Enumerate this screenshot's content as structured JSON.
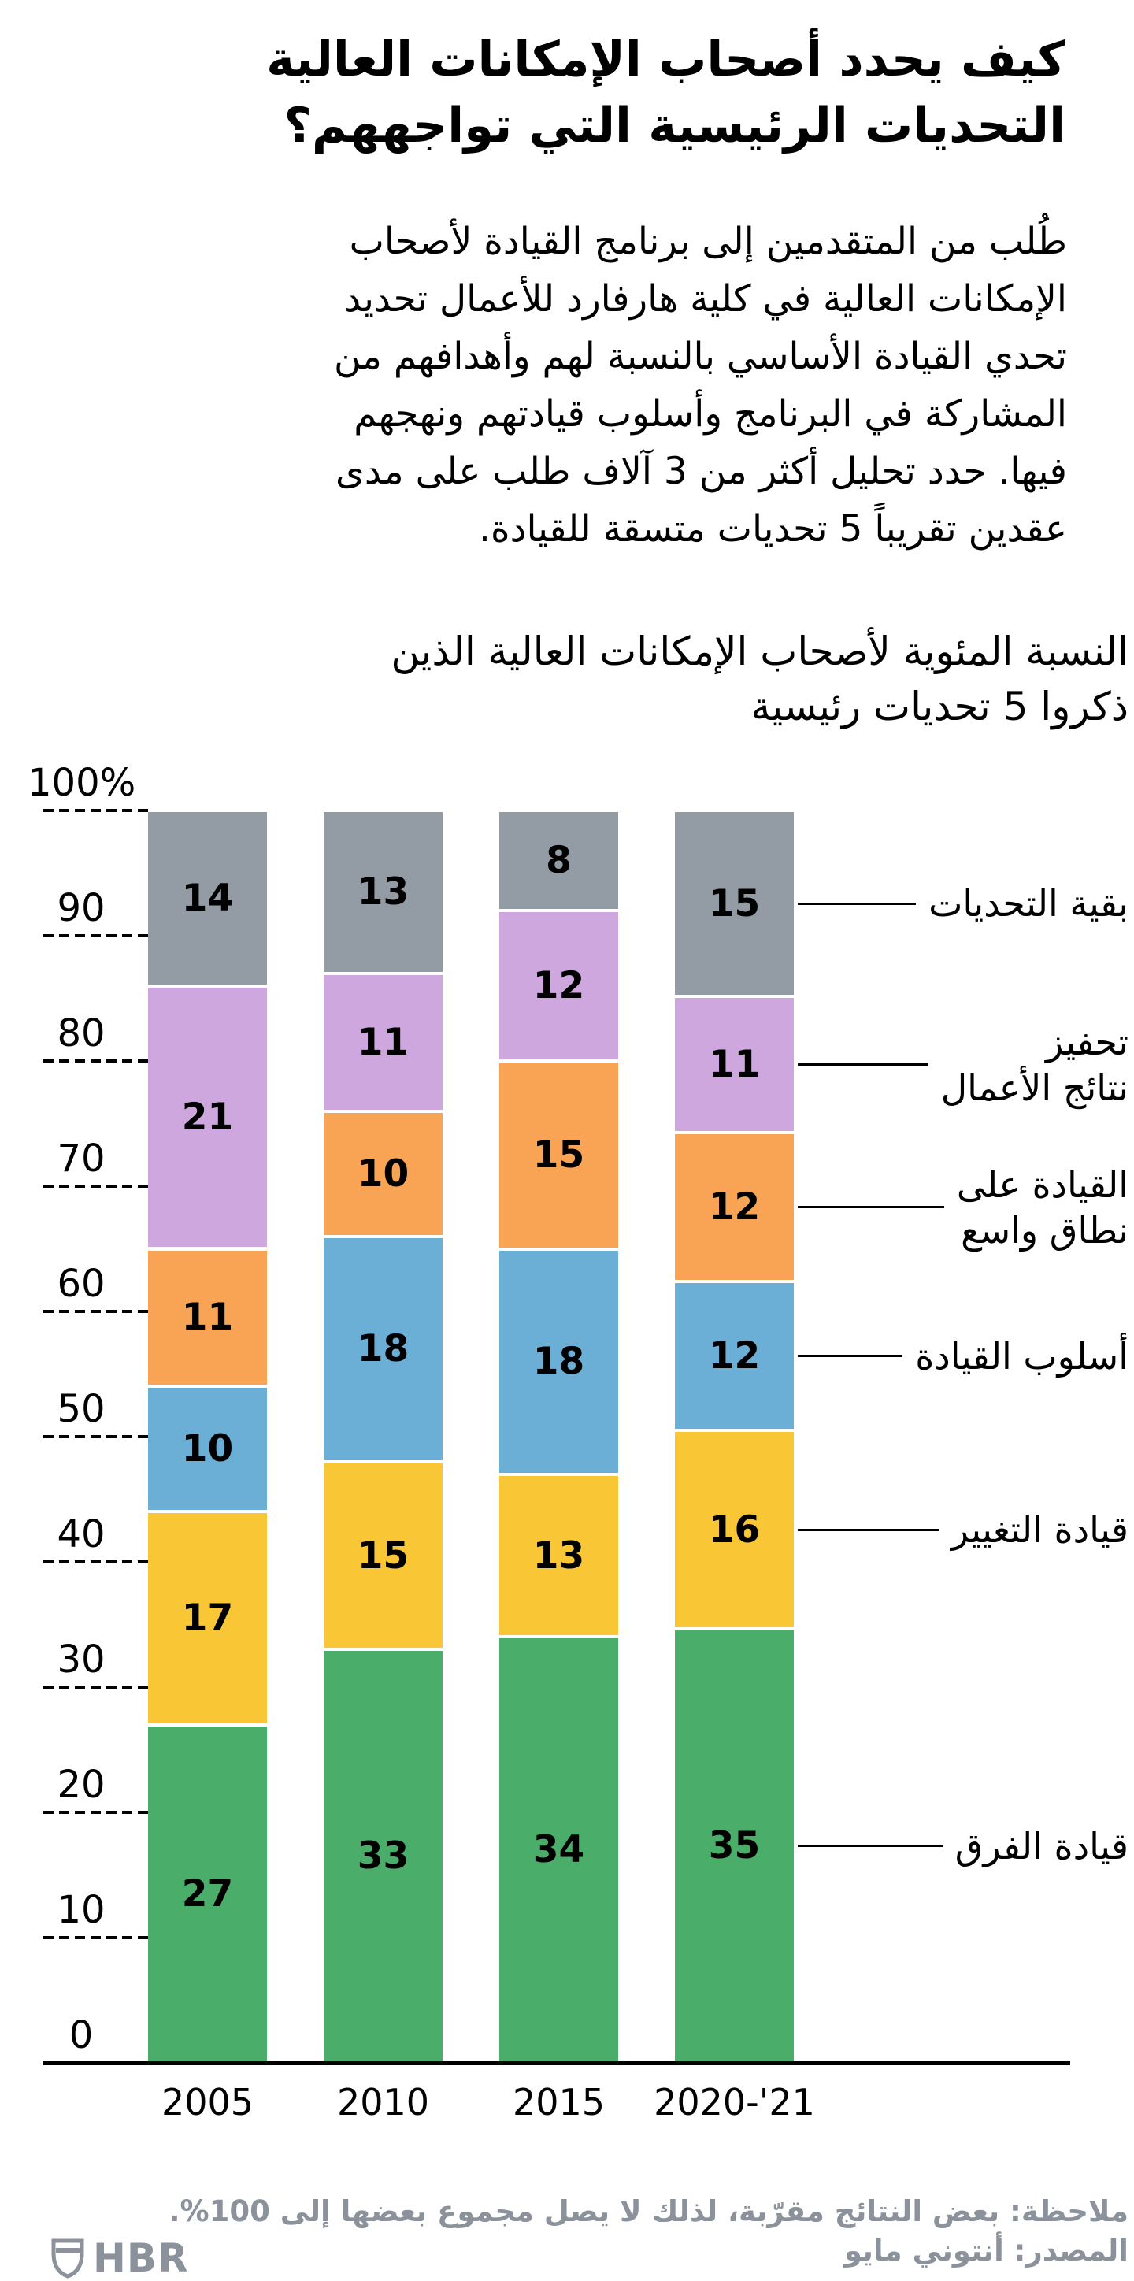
{
  "title": "كيف يحدد أصحاب الإمكانات العالية\nالتحديات الرئيسية التي تواجههم؟",
  "intro": "طُلب من المتقدمين إلى برنامج القيادة لأصحاب\nالإمكانات العالية في كلية هارفارد للأعمال تحديد\nتحدي القيادة الأساسي بالنسبة لهم وأهدافهم من\nالمشاركة في البرنامج وأسلوب قيادتهم ونهجهم\nفيها. حدد تحليل أكثر من 3 آلاف طلب على مدى\nعقدين تقريباً 5 تحديات متسقة للقيادة.",
  "chart_data": {
    "type": "bar",
    "stacked": true,
    "title": "النسبة المئوية لأصحاب الإمكانات العالية الذين\nذكروا 5 تحديات رئيسية",
    "categories": [
      "2005",
      "2010",
      "2015",
      "2020-'21"
    ],
    "series": [
      {
        "name": "بقية التحديات",
        "label": "بقية التحديات",
        "color": "#939CA4",
        "values": [
          14,
          13,
          8,
          15
        ]
      },
      {
        "name": "تحفيز نتائج الأعمال",
        "label": "تحفيز\nنتائج الأعمال",
        "color": "#CDA7DD",
        "values": [
          21,
          11,
          12,
          11
        ]
      },
      {
        "name": "القيادة على نطاق واسع",
        "label": "القيادة على\nنطاق واسع",
        "color": "#F9A455",
        "values": [
          11,
          10,
          15,
          12
        ]
      },
      {
        "name": "أسلوب القيادة",
        "label": "أسلوب القيادة",
        "color": "#6BAED6",
        "values": [
          10,
          18,
          18,
          12
        ]
      },
      {
        "name": "قيادة التغيير",
        "label": "قيادة التغيير",
        "color": "#F9C636",
        "values": [
          17,
          15,
          13,
          16
        ]
      },
      {
        "name": "قيادة الفرق",
        "label": "قيادة الفرق",
        "color": "#4AAD6A",
        "values": [
          27,
          33,
          34,
          35
        ]
      }
    ],
    "yticks": [
      "100%",
      "90",
      "80",
      "70",
      "60",
      "50",
      "40",
      "30",
      "20",
      "10",
      "0"
    ],
    "ylim": [
      0,
      100
    ],
    "grid": "dashed-left-margin-only",
    "legend_position": "right-leader-lines"
  },
  "footer": {
    "note": "ملاحظة: بعض النتائج مقرّبة، لذلك لا يصل مجموع بعضها إلى 100%.",
    "source": "المصدر: أنتوني مايو",
    "logo_text": "HBR"
  },
  "colors": {
    "text": "#000000",
    "muted": "#8B929B",
    "background": "#ffffff"
  }
}
